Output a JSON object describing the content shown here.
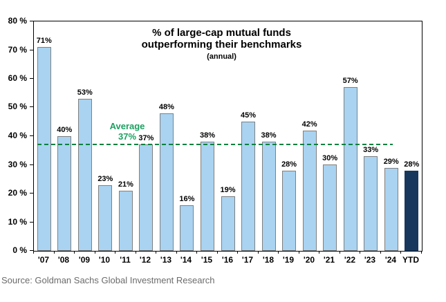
{
  "chart_data": {
    "type": "bar",
    "title": [
      "% of large-cap mutual funds",
      "outperforming their benchmarks",
      "(annual)"
    ],
    "categories": [
      "'07",
      "'08",
      "'09",
      "'10",
      "'11",
      "'12",
      "'13",
      "'14",
      "'15",
      "'16",
      "'17",
      "'18",
      "'19",
      "'20",
      "'21",
      "'22",
      "'23",
      "'24",
      "YTD"
    ],
    "values": [
      71,
      40,
      53,
      23,
      21,
      37,
      48,
      16,
      38,
      19,
      45,
      38,
      28,
      42,
      30,
      57,
      33,
      29,
      28
    ],
    "value_suffix": "%",
    "y_ticks": [
      "0 %",
      "10 %",
      "20 %",
      "30 %",
      "40 %",
      "50 %",
      "60 %",
      "70 %",
      "80 %"
    ],
    "ylim": [
      0,
      80
    ],
    "grid": false,
    "legend": "none",
    "average_line": {
      "value": 37,
      "label": [
        "Average",
        "37%"
      ]
    },
    "highlight": {
      "index": 18,
      "category": "YTD"
    },
    "colors": {
      "bar_fill": "#A9D3F1",
      "bar_border": "#7F7F7F",
      "highlight_bar_fill": "#17375D",
      "average_line": "#00813F",
      "average_text": "#1BA061",
      "axis": "#000000",
      "source_text": "#6B6B6B"
    }
  },
  "source": "Source: Goldman Sachs Global Investment Research"
}
